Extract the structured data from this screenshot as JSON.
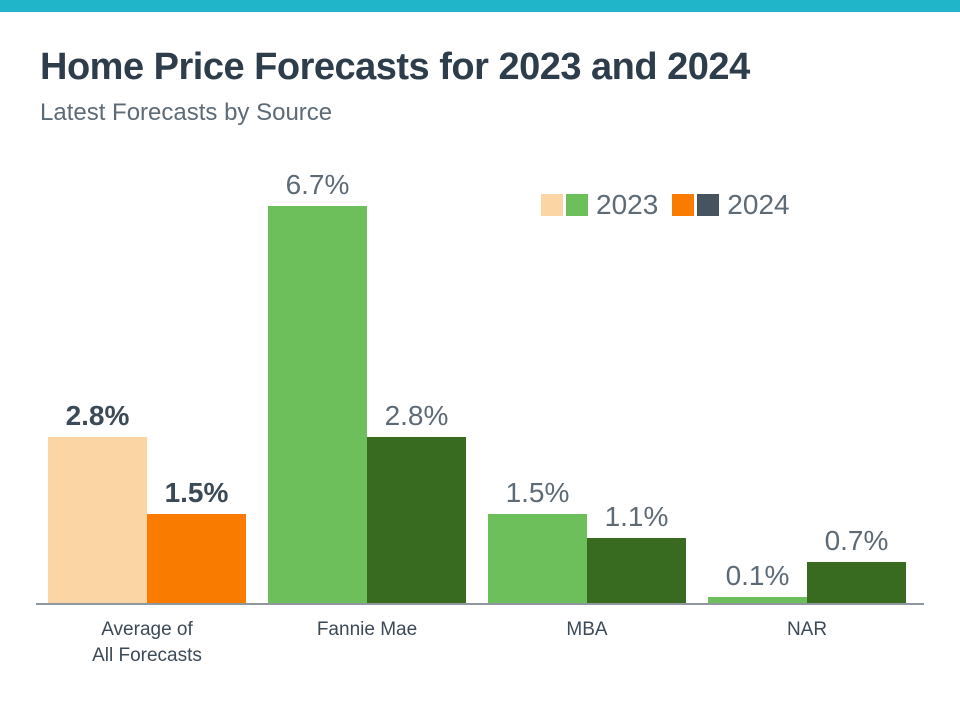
{
  "page": {
    "title": "Home Price Forecasts for 2023 and 2024",
    "subtitle": "Latest Forecasts by Source"
  },
  "colors": {
    "top_stripe": "#20b5c8",
    "title_text": "#2e3d4b",
    "muted_text": "#5d6b77",
    "axis": "#90979e",
    "peach_2023_accent": "#fcd5a5",
    "orange_2024_accent": "#f97c00",
    "green_2023": "#6dbf5b",
    "dark_green_2024": "#386a20",
    "slate_2024_legend": "#47545f"
  },
  "legend": {
    "entries": [
      {
        "label": "2023",
        "colors": [
          "#fcd5a5",
          "#6dbf5b"
        ]
      },
      {
        "label": "2024",
        "colors": [
          "#f97c00",
          "#47545f"
        ]
      }
    ]
  },
  "chart_data": {
    "type": "bar",
    "title": "Home Price Forecasts for 2023 and 2024",
    "subtitle": "Latest Forecasts by Source",
    "categories": [
      "Average of All Forecasts",
      "Fannie Mae",
      "MBA",
      "NAR"
    ],
    "category_lines": [
      [
        "Average of",
        "All Forecasts"
      ],
      [
        "Fannie Mae"
      ],
      [
        "MBA"
      ],
      [
        "NAR"
      ]
    ],
    "series": [
      {
        "name": "2023",
        "values": [
          2.8,
          6.7,
          1.5,
          0.1
        ]
      },
      {
        "name": "2024",
        "values": [
          1.5,
          2.8,
          1.1,
          0.7
        ]
      }
    ],
    "value_labels": [
      [
        "2.8%",
        "1.5%"
      ],
      [
        "6.7%",
        "2.8%"
      ],
      [
        "1.5%",
        "1.1%"
      ],
      [
        "0.1%",
        "0.7%"
      ]
    ],
    "group_colors": [
      [
        "#fcd5a5",
        "#f97c00"
      ],
      [
        "#6dbf5b",
        "#386a20"
      ],
      [
        "#6dbf5b",
        "#386a20"
      ],
      [
        "#6dbf5b",
        "#386a20"
      ]
    ],
    "unit": "%",
    "ylim": [
      0,
      7
    ],
    "grid": false,
    "legend_position": "top-right",
    "xlabel": "",
    "ylabel": ""
  }
}
